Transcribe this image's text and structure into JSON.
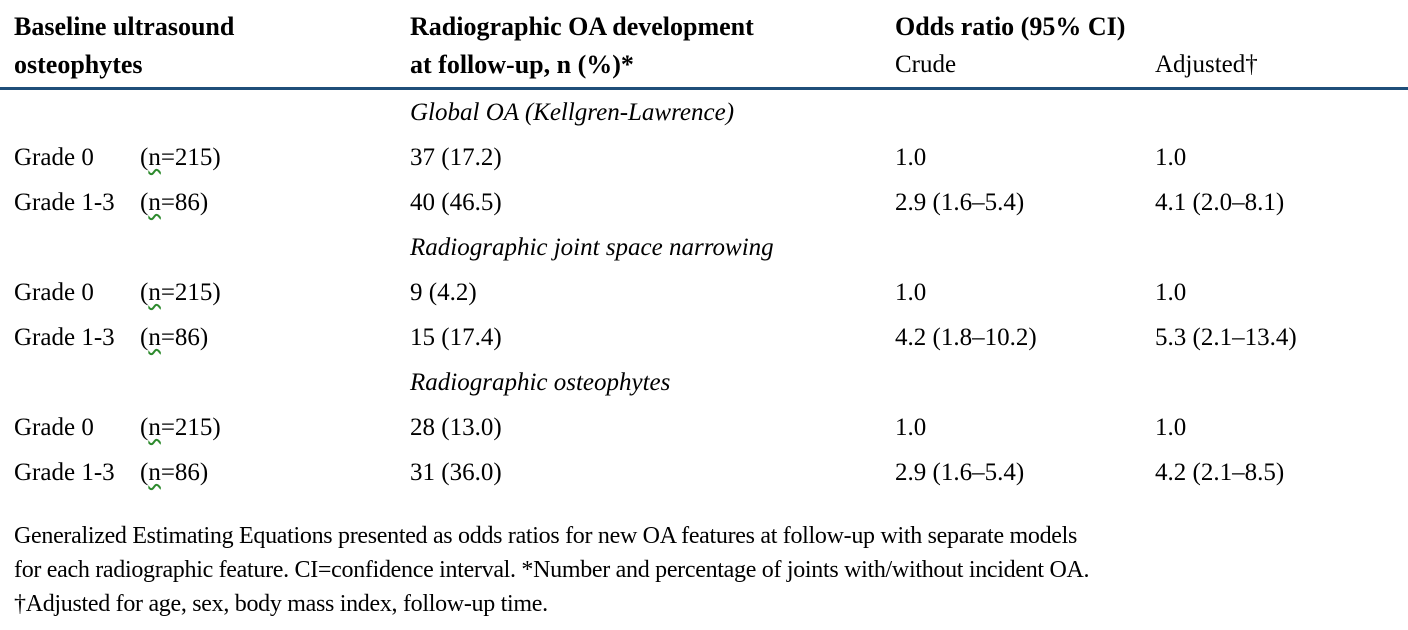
{
  "table": {
    "header": {
      "col1": "Baseline ultrasound\nosteophytes",
      "col2": "Radiographic OA development\nat follow-up, n (%)*",
      "odds_ratio": "Odds ratio (95% CI)",
      "crude": "Crude",
      "adjusted": "Adjusted†"
    },
    "colors": {
      "rule": "#1F4E79",
      "squiggle": "#2e8b2e",
      "text": "#000000"
    },
    "sections": [
      {
        "heading": "Global OA (Kellgren-Lawrence)",
        "rows": [
          {
            "grade": "Grade 0",
            "n_pre": "(",
            "n_char": "n",
            "n_post": "=215)",
            "development": "37 (17.2)",
            "crude": "1.0",
            "adjusted": "1.0"
          },
          {
            "grade": "Grade 1-3",
            "n_pre": "(",
            "n_char": "n",
            "n_post": "=86)",
            "development": "40 (46.5)",
            "crude": "2.9 (1.6–5.4)",
            "adjusted": "4.1 (2.0–8.1)"
          }
        ]
      },
      {
        "heading": "Radiographic joint space narrowing",
        "rows": [
          {
            "grade": "Grade 0",
            "n_pre": "(",
            "n_char": "n",
            "n_post": "=215)",
            "development": "9 (4.2)",
            "crude": "1.0",
            "adjusted": "1.0"
          },
          {
            "grade": "Grade 1-3",
            "n_pre": "(",
            "n_char": "n",
            "n_post": "=86)",
            "development": "15 (17.4)",
            "crude": "4.2 (1.8–10.2)",
            "adjusted": "5.3 (2.1–13.4)"
          }
        ]
      },
      {
        "heading": "Radiographic osteophytes",
        "rows": [
          {
            "grade": "Grade 0",
            "n_pre": "(",
            "n_char": "n",
            "n_post": "=215)",
            "development": "28 (13.0)",
            "crude": "1.0",
            "adjusted": "1.0"
          },
          {
            "grade": "Grade 1-3",
            "n_pre": "(",
            "n_char": "n",
            "n_post": "=86)",
            "development": "31 (36.0)",
            "crude": "2.9 (1.6–5.4)",
            "adjusted": "4.2 (2.1–8.5)"
          }
        ]
      }
    ]
  },
  "footnote": {
    "lines": [
      "Generalized Estimating Equations presented as odds ratios for new OA features at follow-up with separate models",
      "for each radiographic feature. CI=confidence interval. *Number and percentage of joints with/without incident OA.",
      "†Adjusted for age, sex, body mass index, follow-up time."
    ]
  }
}
